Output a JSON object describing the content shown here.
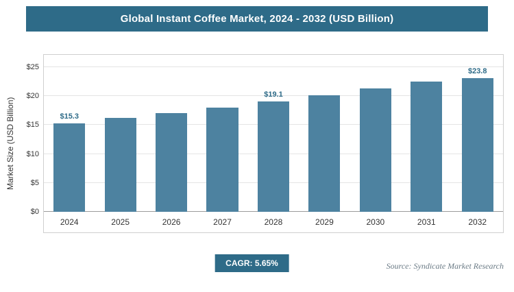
{
  "header": {
    "title": "Global Instant Coffee Market, 2024 - 2032 (USD Billion)"
  },
  "chart_data": {
    "type": "bar",
    "title": "Global Instant Coffee Market, 2024 - 2032 (USD Billion)",
    "categories": [
      "2024",
      "2025",
      "2026",
      "2027",
      "2028",
      "2029",
      "2030",
      "2031",
      "2032"
    ],
    "values": [
      15.3,
      16.2,
      17.1,
      18.0,
      19.1,
      20.1,
      21.3,
      22.5,
      23.8
    ],
    "value_labels": [
      "$15.3",
      "",
      "",
      "",
      "$19.1",
      "",
      "",
      "",
      "$23.8"
    ],
    "xlabel": "",
    "ylabel": "Market Size (USD Billion)",
    "ylim": [
      0,
      25
    ],
    "yticks": [
      "$0",
      "$5",
      "$10",
      "$15",
      "$20",
      "$25"
    ],
    "grid": "horizontal",
    "legend": "none",
    "bar_color": "#4D82A0",
    "value_label_color": "#2E6B88"
  },
  "footer": {
    "cagr_label": "CAGR: 5.65%",
    "source": "Source: Syndicate Market Research"
  },
  "colors": {
    "accent": "#2E6B88"
  }
}
